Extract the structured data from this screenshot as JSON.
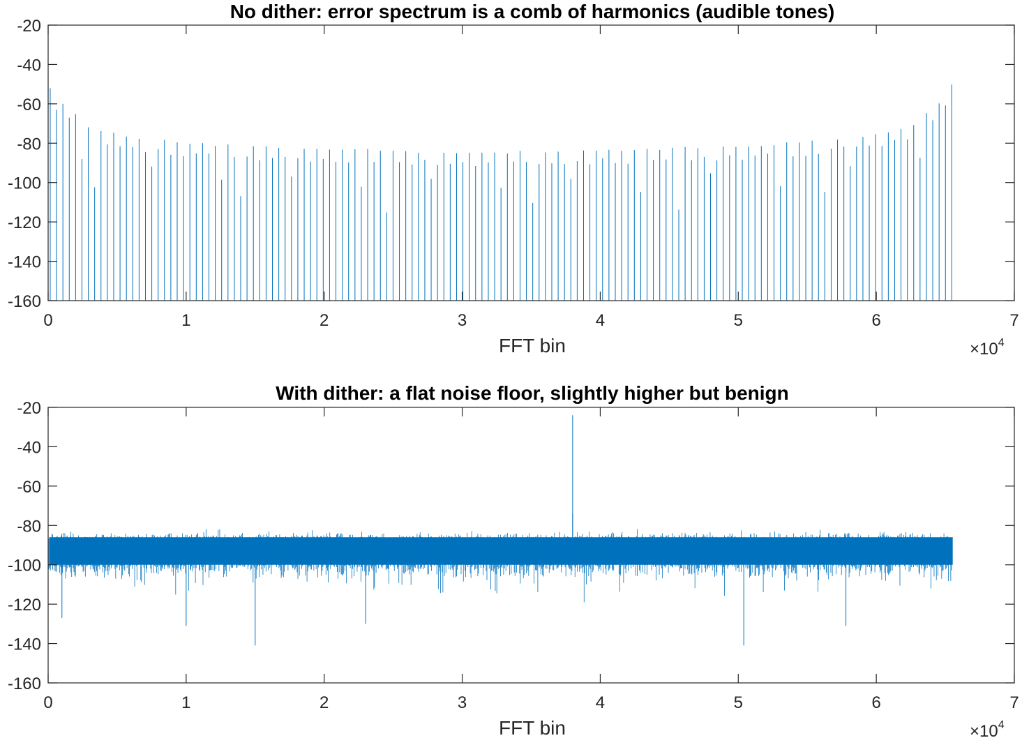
{
  "chart_data": [
    {
      "type": "line",
      "title": "No dither: error spectrum is a comb of harmonics (audible tones)",
      "xlabel": "FFT bin",
      "ylabel": "",
      "xlim": [
        0,
        70000
      ],
      "ylim": [
        -160,
        -20
      ],
      "x_exponent_label": "×10",
      "x_exponent_power": "4",
      "xticks": [
        0,
        10000,
        20000,
        30000,
        40000,
        50000,
        60000,
        70000
      ],
      "xtick_labels": [
        "0",
        "1",
        "2",
        "3",
        "4",
        "5",
        "6",
        "7"
      ],
      "yticks": [
        -20,
        -40,
        -60,
        -80,
        -100,
        -120,
        -140,
        -160
      ],
      "ytick_labels": [
        "-20",
        "-40",
        "-60",
        "-80",
        "-100",
        "-120",
        "-140",
        "-160"
      ],
      "color": "#0072BD",
      "series": [
        {
          "style": "comb",
          "x_start": 0,
          "x_end": 65536,
          "spike_spacing": 460,
          "peak_envelope": [
            [
              0,
              -50
            ],
            [
              1000,
              -60
            ],
            [
              3000,
              -72
            ],
            [
              6000,
              -77
            ],
            [
              10000,
              -80
            ],
            [
              20000,
              -83
            ],
            [
              32768,
              -85
            ],
            [
              45000,
              -83
            ],
            [
              55000,
              -80
            ],
            [
              59000,
              -77
            ],
            [
              62500,
              -72
            ],
            [
              64500,
              -60
            ],
            [
              65536,
              -50
            ]
          ],
          "floor": -160
        }
      ]
    },
    {
      "type": "line",
      "title": "With dither: a flat noise floor, slightly higher but benign",
      "xlabel": "FFT bin",
      "ylabel": "",
      "xlim": [
        0,
        70000
      ],
      "ylim": [
        -160,
        -20
      ],
      "x_exponent_label": "×10",
      "x_exponent_power": "4",
      "xticks": [
        0,
        10000,
        20000,
        30000,
        40000,
        50000,
        60000,
        70000
      ],
      "xtick_labels": [
        "0",
        "1",
        "2",
        "3",
        "4",
        "5",
        "6",
        "7"
      ],
      "yticks": [
        -20,
        -40,
        -60,
        -80,
        -100,
        -120,
        -140,
        -160
      ],
      "ytick_labels": [
        "-20",
        "-40",
        "-60",
        "-80",
        "-100",
        "-120",
        "-140",
        "-160"
      ],
      "color": "#0072BD",
      "series": [
        {
          "style": "noise",
          "x_start": 0,
          "x_end": 65536,
          "dense_band": [
            -100,
            -86
          ],
          "typical_range": [
            -110,
            -82
          ],
          "spikes": [
            {
              "x": 38000,
              "y": -24
            },
            {
              "x": 38000,
              "y": -74
            },
            {
              "x": 15000,
              "y": -141
            },
            {
              "x": 50400,
              "y": -141
            },
            {
              "x": 10000,
              "y": -131
            },
            {
              "x": 23000,
              "y": -130
            },
            {
              "x": 57800,
              "y": -131
            },
            {
              "x": 1000,
              "y": -127
            }
          ]
        }
      ]
    }
  ]
}
